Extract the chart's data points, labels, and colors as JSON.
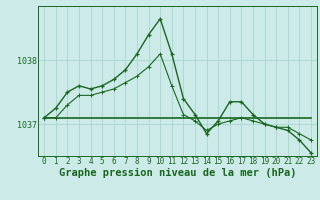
{
  "title": "Graphe pression niveau de la mer (hPa)",
  "background_color": "#cceae7",
  "grid_color": "#aad4d0",
  "line_color": "#1a6620",
  "x_labels": [
    "0",
    "1",
    "2",
    "3",
    "4",
    "5",
    "6",
    "7",
    "8",
    "9",
    "10",
    "11",
    "12",
    "13",
    "14",
    "15",
    "16",
    "17",
    "18",
    "19",
    "20",
    "21",
    "22",
    "23"
  ],
  "hours": [
    0,
    1,
    2,
    3,
    4,
    5,
    6,
    7,
    8,
    9,
    10,
    11,
    12,
    13,
    14,
    15,
    16,
    17,
    18,
    19,
    20,
    21,
    22,
    23
  ],
  "series1": [
    1037.1,
    1037.25,
    1037.5,
    1037.6,
    1037.55,
    1037.6,
    1037.7,
    1037.85,
    1038.1,
    1038.4,
    1038.65,
    1038.1,
    1037.4,
    1037.15,
    1036.85,
    1037.05,
    1037.35,
    1037.35,
    1037.15,
    1037.0,
    1036.95,
    1036.9,
    1036.75,
    1036.55
  ],
  "series2": [
    1037.1,
    1037.1,
    1037.3,
    1037.45,
    1037.45,
    1037.5,
    1037.55,
    1037.65,
    1037.75,
    1037.9,
    1038.1,
    1037.6,
    1037.15,
    1037.05,
    1036.9,
    1037.0,
    1037.05,
    1037.1,
    1037.05,
    1037.0,
    1036.95,
    1036.95,
    1036.85,
    1036.75
  ],
  "series3": [
    1037.1,
    1037.1,
    1037.1,
    1037.1,
    1037.1,
    1037.1,
    1037.1,
    1037.1,
    1037.1,
    1037.1,
    1037.1,
    1037.1,
    1037.1,
    1037.1,
    1037.1,
    1037.1,
    1037.1,
    1037.1,
    1037.1,
    1037.1,
    1037.1,
    1037.1,
    1037.1,
    1037.1
  ],
  "ylim": [
    1036.5,
    1038.85
  ],
  "yticks": [
    1037,
    1038
  ],
  "figsize": [
    3.2,
    2.0
  ],
  "dpi": 100,
  "title_fontsize": 7.5,
  "tick_fontsize": 6.0,
  "linewidth1": 1.0,
  "linewidth2": 0.8,
  "linewidth3": 1.2,
  "markersize": 3.5
}
